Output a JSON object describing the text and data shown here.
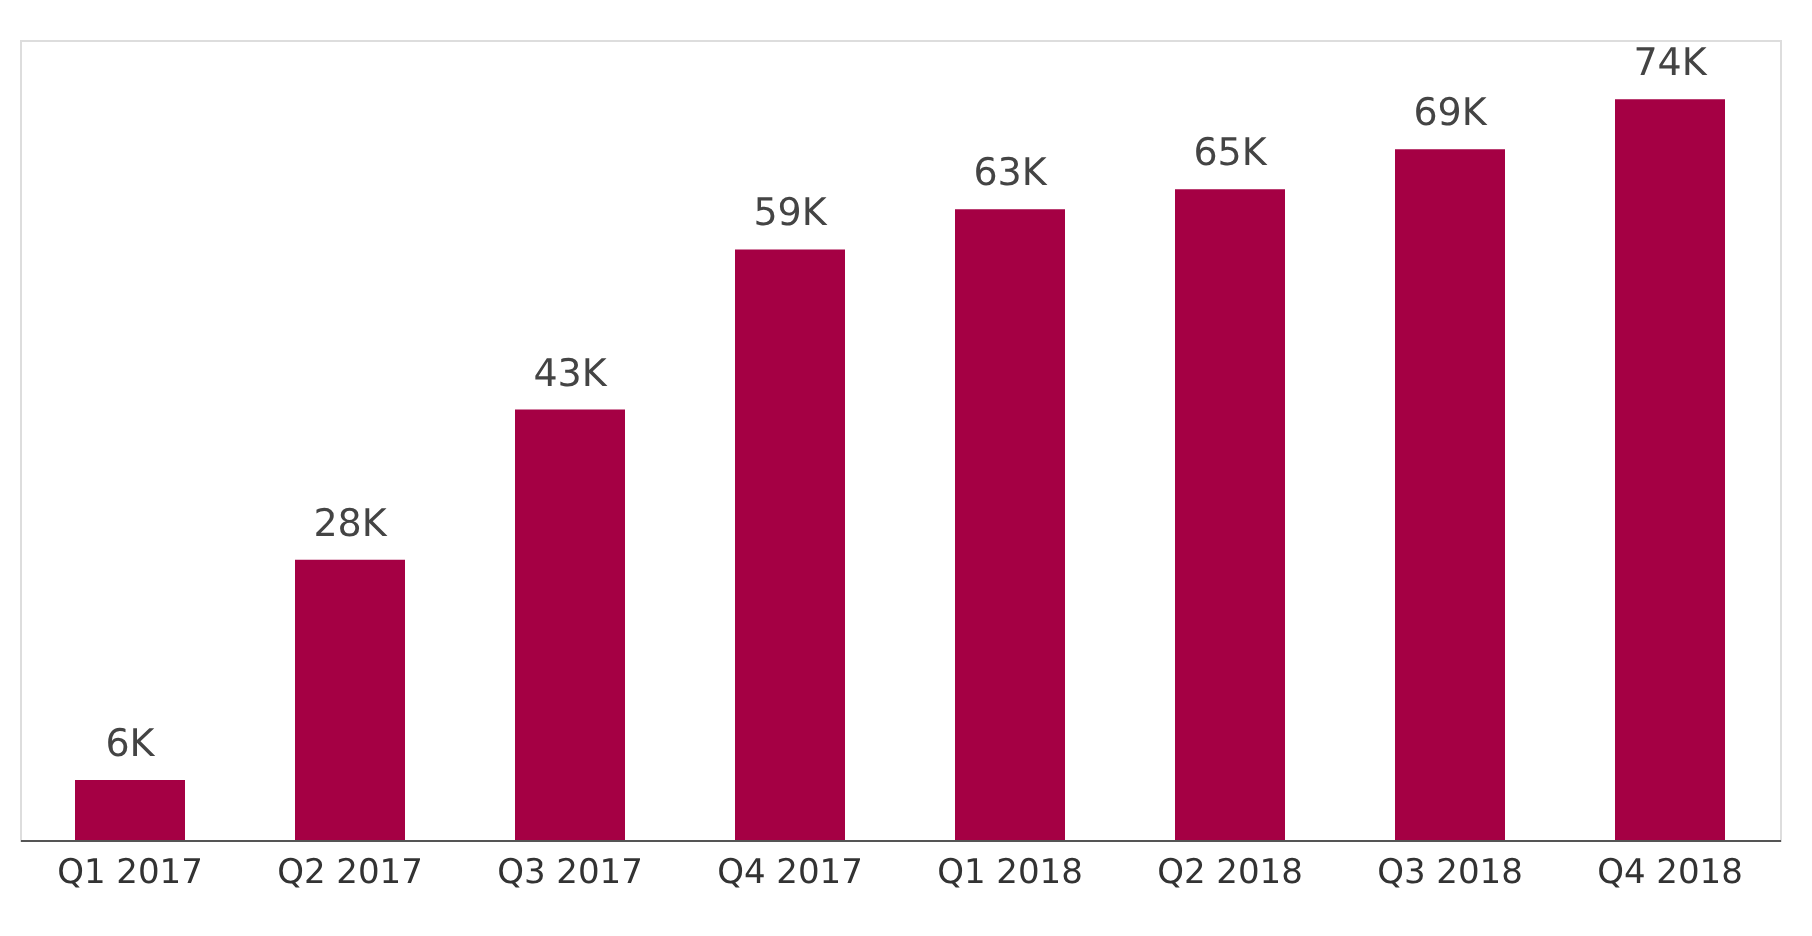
{
  "chart_data": {
    "type": "bar",
    "categories": [
      "Q1 2017",
      "Q2 2017",
      "Q3 2017",
      "Q4 2017",
      "Q1 2018",
      "Q2 2018",
      "Q3 2018",
      "Q4 2018"
    ],
    "values": [
      6000,
      28000,
      43000,
      59000,
      63000,
      65000,
      69000,
      74000
    ],
    "value_labels": [
      "6K",
      "28K",
      "43K",
      "59K",
      "63K",
      "65K",
      "69K",
      "74K"
    ],
    "color": "#a50044",
    "grid": false,
    "tick_labels": "x"
  }
}
